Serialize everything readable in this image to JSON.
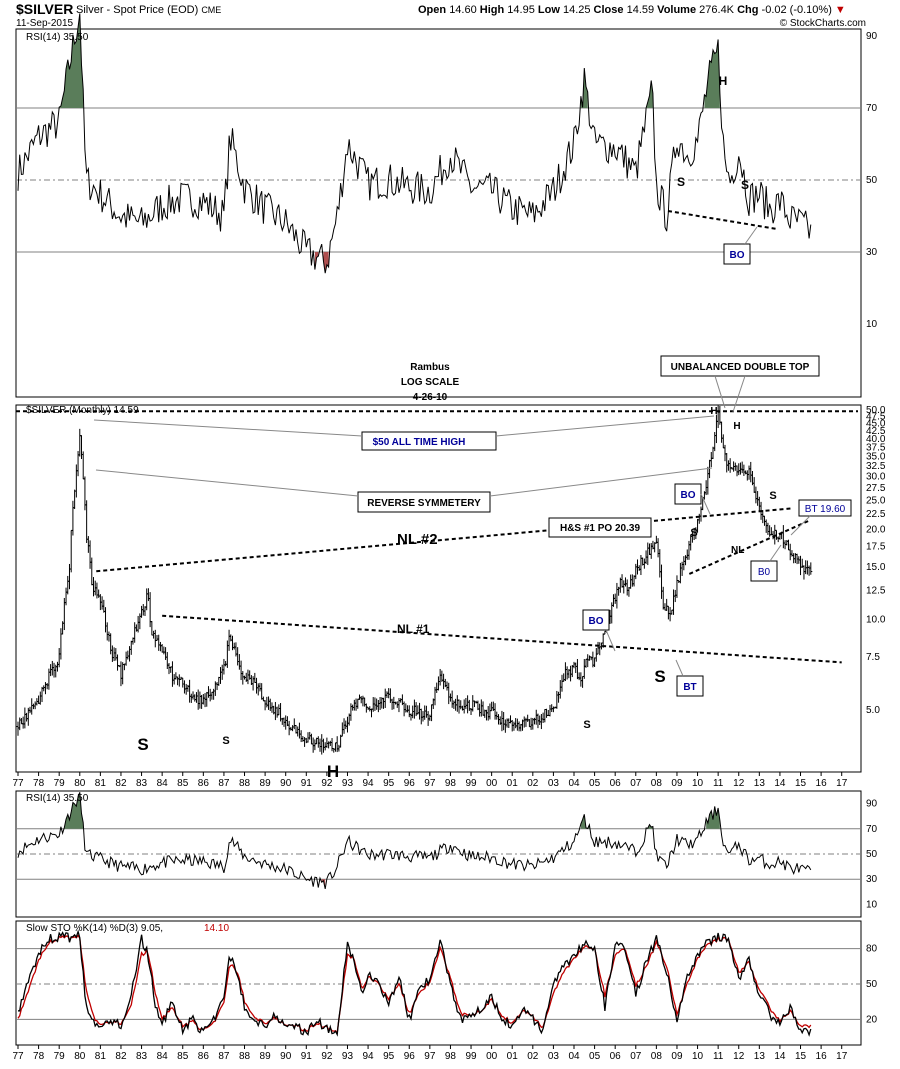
{
  "header": {
    "symbol": "$SILVER",
    "description": "Silver - Spot Price (EOD)",
    "exchange": "CME",
    "date": "11-Sep-2015",
    "open_label": "Open",
    "open": "14.60",
    "high_label": "High",
    "high": "14.95",
    "low_label": "Low",
    "low": "14.25",
    "close_label": "Close",
    "close": "14.59",
    "volume_label": "Volume",
    "volume": "276.4K",
    "chg_label": "Chg",
    "chg": "-0.02 (-0.10%)",
    "close_icon": "close-x-icon",
    "copyright": "© StockCharts.com"
  },
  "colors": {
    "rsi_fill": "#5a7d5a",
    "stoch_d": "#c00000",
    "grid": "#808080",
    "annotation_blue": "#000099"
  },
  "chart_data": [
    {
      "type": "line",
      "panel": "RSI (top)",
      "label": "RSI(14) 35.50",
      "ylim": [
        0,
        100
      ],
      "yticks": [
        10,
        30,
        50,
        70,
        90
      ],
      "x": [
        77.0,
        78.0,
        79.0,
        79.5,
        80.0,
        80.3,
        81.0,
        82.0,
        83.0,
        84.0,
        85.0,
        86.0,
        87.0,
        87.3,
        88.0,
        89.0,
        90.0,
        91.0,
        92.0,
        92.5,
        93.0,
        94.0,
        95.0,
        96.0,
        97.0,
        98.0,
        99.0,
        100.0,
        101.0,
        102.0,
        103.0,
        104.0,
        104.5,
        105.0,
        106.0,
        107.0,
        107.8,
        108.0,
        108.5,
        109.0,
        109.5,
        110.0,
        110.5,
        111.0,
        111.3,
        111.6,
        112.0,
        112.5,
        113.0,
        113.5,
        114.0,
        114.5,
        115.0,
        115.5
      ],
      "values": [
        52,
        62,
        66,
        82,
        97,
        50,
        46,
        40,
        38,
        43,
        45,
        44,
        40,
        62,
        48,
        42,
        38,
        30,
        27,
        40,
        60,
        49,
        50,
        48,
        47,
        57,
        48,
        47,
        42,
        40,
        47,
        60,
        78,
        60,
        59,
        52,
        75,
        48,
        40,
        62,
        57,
        61,
        77,
        86,
        55,
        50,
        58,
        45,
        46,
        42,
        44,
        39,
        38,
        35.5
      ],
      "annotations": [
        "H",
        "S",
        "S",
        "BO"
      ]
    },
    {
      "type": "bar",
      "panel": "price (main, log scale)",
      "label": "$SILVER (Monthly) 14.59",
      "scale": "log",
      "ylim": [
        3.2,
        51
      ],
      "yticks": [
        5.0,
        7.5,
        10.0,
        12.5,
        15.0,
        17.5,
        20.0,
        22.5,
        25.0,
        27.5,
        30.0,
        32.5,
        35.0,
        37.5,
        40.0,
        42.5,
        45.0,
        47.5,
        50.0
      ],
      "x": [
        77.0,
        78.0,
        79.0,
        79.5,
        80.0,
        80.3,
        80.6,
        81.0,
        81.5,
        82.0,
        82.5,
        83.0,
        83.3,
        83.5,
        84.0,
        84.5,
        85.0,
        85.5,
        86.0,
        86.5,
        87.0,
        87.3,
        87.8,
        88.5,
        89.0,
        89.5,
        90.0,
        90.5,
        91.0,
        91.5,
        92.0,
        92.5,
        93.0,
        93.3,
        93.6,
        94.0,
        95.0,
        96.0,
        97.0,
        97.5,
        98.0,
        98.5,
        99.0,
        99.5,
        100.0,
        101.0,
        102.0,
        102.5,
        103.0,
        103.5,
        104.0,
        104.3,
        104.6,
        105.0,
        105.5,
        106.0,
        106.3,
        106.6,
        107.0,
        107.5,
        108.0,
        108.3,
        108.7,
        109.0,
        109.5,
        110.0,
        110.5,
        110.8,
        111.0,
        111.3,
        111.6,
        112.0,
        112.5,
        113.0,
        113.5,
        114.0,
        114.5,
        115.0,
        115.5
      ],
      "values": [
        4.4,
        5.4,
        7.5,
        15.0,
        40.0,
        20.0,
        13.0,
        11.5,
        8.0,
        6.5,
        8.5,
        10.5,
        12.0,
        9.0,
        8.0,
        6.5,
        6.2,
        5.5,
        5.4,
        5.8,
        6.8,
        8.8,
        6.5,
        6.2,
        5.4,
        5.0,
        4.6,
        4.2,
        4.0,
        3.9,
        3.8,
        3.75,
        4.6,
        5.2,
        5.5,
        5.1,
        5.5,
        5.0,
        4.8,
        6.5,
        5.5,
        5.2,
        5.2,
        5.0,
        4.9,
        4.4,
        4.6,
        4.8,
        5.0,
        6.5,
        7.0,
        6.2,
        7.5,
        7.3,
        9.0,
        12.0,
        13.5,
        12.5,
        14.5,
        16.5,
        18.0,
        11.0,
        10.5,
        13.0,
        17.0,
        21.0,
        30.0,
        40.0,
        48.0,
        35.0,
        31.0,
        32.0,
        31.0,
        23.5,
        19.0,
        19.5,
        17.0,
        15.0,
        14.59
      ],
      "lines": [
        "NL #1",
        "NL #2",
        "NL",
        "$50 ALL TIME HIGH"
      ],
      "annotations": [
        "Rambus",
        "LOG SCALE",
        "4-26-10",
        "UNBALANCED DOUBLE TOP",
        "$50 ALL TIME HIGH",
        "REVERSE SYMMETERY",
        "NL #2",
        "NL #1",
        "H&S #1 PO 20.39",
        "BT 19.60",
        "BO",
        "BO",
        "B0",
        "BT",
        "S",
        "S",
        "S",
        "H",
        "S",
        "S",
        "S",
        "H",
        "H",
        "S",
        "NL"
      ]
    },
    {
      "type": "line",
      "panel": "RSI (lower)",
      "label": "RSI(14) 35.50",
      "ylim": [
        0,
        100
      ],
      "yticks": [
        10,
        30,
        50,
        70,
        90
      ]
    },
    {
      "type": "line",
      "panel": "Slow Stochastic",
      "label": "Slow STO %K(14) %D(3) 9.05,",
      "label_d": "14.10",
      "ylim": [
        0,
        100
      ],
      "yticks": [
        20,
        50,
        80
      ],
      "x": [
        77.0,
        77.5,
        78.0,
        78.5,
        79.0,
        79.5,
        80.0,
        80.3,
        80.7,
        81.0,
        81.5,
        82.0,
        82.5,
        83.0,
        83.3,
        83.7,
        84.0,
        84.5,
        85.0,
        85.5,
        86.0,
        86.5,
        87.0,
        87.3,
        87.7,
        88.0,
        88.5,
        89.0,
        89.5,
        90.0,
        90.5,
        91.0,
        91.5,
        92.0,
        92.5,
        93.0,
        93.3,
        93.7,
        94.0,
        94.5,
        95.0,
        95.5,
        96.0,
        96.5,
        97.0,
        97.5,
        98.0,
        98.5,
        99.0,
        99.5,
        100.0,
        100.5,
        101.0,
        101.5,
        102.0,
        102.5,
        103.0,
        103.5,
        104.0,
        104.5,
        105.0,
        105.5,
        106.0,
        106.5,
        107.0,
        107.5,
        108.0,
        108.5,
        109.0,
        109.5,
        110.0,
        110.5,
        111.0,
        111.5,
        112.0,
        112.5,
        113.0,
        113.5,
        114.0,
        114.5,
        115.0,
        115.5
      ],
      "values": [
        25,
        55,
        75,
        88,
        90,
        89,
        92,
        30,
        15,
        12,
        20,
        15,
        40,
        88,
        75,
        30,
        15,
        35,
        12,
        20,
        8,
        20,
        40,
        75,
        55,
        30,
        20,
        15,
        25,
        12,
        15,
        8,
        20,
        12,
        5,
        85,
        70,
        40,
        60,
        50,
        35,
        55,
        20,
        45,
        55,
        85,
        50,
        20,
        25,
        30,
        40,
        20,
        15,
        30,
        20,
        10,
        50,
        65,
        75,
        85,
        80,
        30,
        85,
        80,
        40,
        70,
        88,
        60,
        20,
        55,
        75,
        85,
        90,
        88,
        55,
        70,
        40,
        25,
        15,
        30,
        12,
        9
      ],
      "d_values": [
        20,
        45,
        70,
        85,
        89,
        89,
        90,
        45,
        20,
        15,
        18,
        17,
        32,
        75,
        78,
        40,
        20,
        30,
        15,
        18,
        10,
        17,
        35,
        68,
        58,
        35,
        22,
        17,
        22,
        14,
        15,
        10,
        17,
        13,
        8,
        75,
        72,
        45,
        57,
        50,
        38,
        50,
        25,
        42,
        52,
        80,
        55,
        25,
        24,
        28,
        37,
        23,
        17,
        28,
        22,
        13,
        42,
        60,
        72,
        82,
        80,
        40,
        75,
        80,
        48,
        65,
        85,
        65,
        25,
        50,
        72,
        83,
        88,
        88,
        60,
        68,
        45,
        30,
        18,
        27,
        15,
        14.1
      ]
    }
  ],
  "x_axis_labels": [
    "77",
    "78",
    "79",
    "80",
    "81",
    "82",
    "83",
    "84",
    "85",
    "86",
    "87",
    "88",
    "89",
    "90",
    "91",
    "92",
    "93",
    "94",
    "95",
    "96",
    "97",
    "98",
    "99",
    "00",
    "01",
    "02",
    "03",
    "04",
    "05",
    "06",
    "07",
    "08",
    "09",
    "10",
    "11",
    "12",
    "13",
    "14",
    "15",
    "16",
    "17"
  ]
}
